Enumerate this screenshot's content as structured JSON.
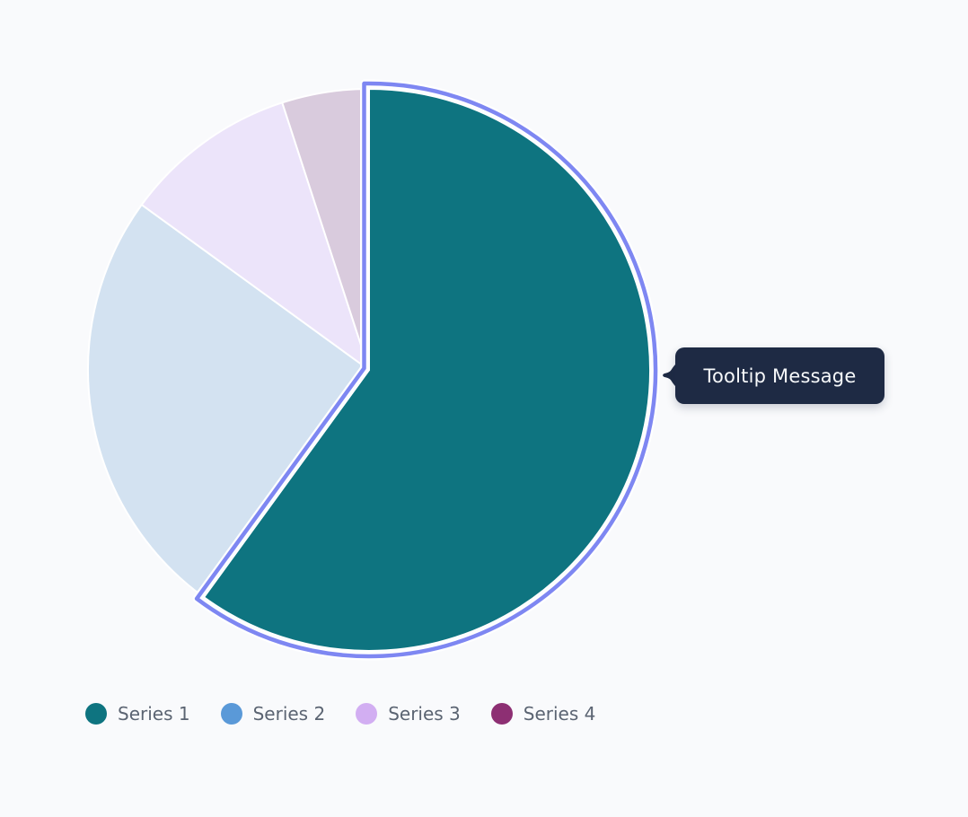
{
  "background": "#f9fafc",
  "chart_data": {
    "type": "pie",
    "title": "",
    "start_angle_deg": 0,
    "direction": "clockwise",
    "unit": "percent",
    "legend_position": "bottom-left",
    "slice_border_color": "#ffffff",
    "highlight_ring_color": "#7e87f2",
    "active_slice": "Series 1",
    "slices": [
      {
        "label": "Series 1",
        "value": 60,
        "legend_color": "#0e7480",
        "fill": "#0e7480",
        "active": true
      },
      {
        "label": "Series 2",
        "value": 25,
        "legend_color": "#5a99d8",
        "fill": "#d3e2f1",
        "active": false
      },
      {
        "label": "Series 3",
        "value": 10,
        "legend_color": "#d2aef2",
        "fill": "#ece4fa",
        "active": false
      },
      {
        "label": "Series 4",
        "value": 5,
        "legend_color": "#8d2f73",
        "fill": "#d9cbdd",
        "active": false
      }
    ]
  },
  "tooltip": {
    "text": "Tooltip Message",
    "background": "#1e2a44",
    "text_color": "#f7f9fb"
  }
}
